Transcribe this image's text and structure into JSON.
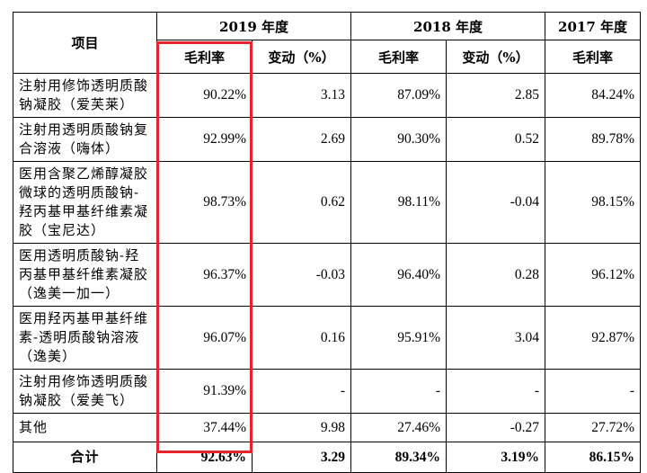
{
  "header": {
    "item_label": "项目",
    "year_2019": "2019 年度",
    "year_2018": "2018 年度",
    "year_2017": "2017 年度",
    "gross_margin": "毛利率",
    "change": "变动（%）"
  },
  "rows": [
    {
      "item": "注射用修饰透明质酸钠凝胶（爱芙莱）",
      "gm2019": "90.22%",
      "chg2019": "3.13",
      "gm2018": "87.09%",
      "chg2018": "2.85",
      "gm2017": "84.24%"
    },
    {
      "item": "注射用透明质酸钠复合溶液（嗨体）",
      "gm2019": "92.99%",
      "chg2019": "2.69",
      "gm2018": "90.30%",
      "chg2018": "0.52",
      "gm2017": "89.78%"
    },
    {
      "item": "医用含聚乙烯醇凝胶微球的透明质酸钠-羟丙基甲基纤维素凝胶（宝尼达）",
      "gm2019": "98.73%",
      "chg2019": "0.62",
      "gm2018": "98.11%",
      "chg2018": "-0.04",
      "gm2017": "98.15%"
    },
    {
      "item": "医用透明质酸钠-羟丙基甲基纤维素凝胶（逸美一加一）",
      "gm2019": "96.37%",
      "chg2019": "-0.03",
      "gm2018": "96.40%",
      "chg2018": "0.28",
      "gm2017": "96.12%"
    },
    {
      "item": "医用羟丙基甲基纤维素-透明质酸钠溶液（逸美）",
      "gm2019": "96.07%",
      "chg2019": "0.16",
      "gm2018": "95.91%",
      "chg2018": "3.04",
      "gm2017": "92.87%"
    },
    {
      "item": "注射用修饰透明质酸钠凝胶（爱美飞）",
      "gm2019": "91.39%",
      "chg2019": "-",
      "gm2018": "-",
      "chg2018": "-",
      "gm2017": "-"
    },
    {
      "item": "其他",
      "gm2019": "37.44%",
      "chg2019": "9.98",
      "gm2018": "27.46%",
      "chg2018": "-0.27",
      "gm2017": "27.72%"
    }
  ],
  "total": {
    "item": "合计",
    "gm2019": "92.63%",
    "chg2019": "3.29",
    "gm2018": "89.34%",
    "chg2018": "3.19%",
    "gm2017": "86.15%"
  },
  "colors": {
    "highlight": "#e8232a"
  }
}
